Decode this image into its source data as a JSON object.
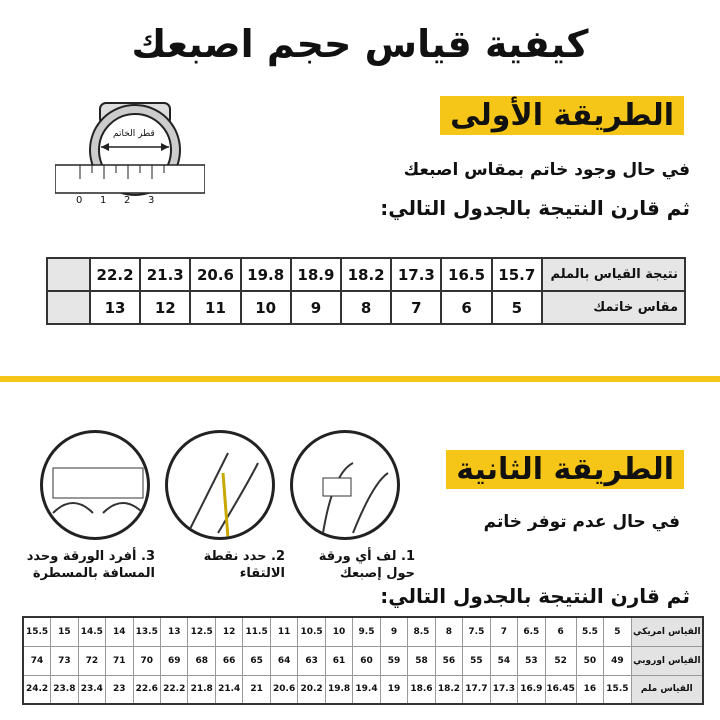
{
  "title": "كيفية قياس حجم اصبعك",
  "method1": {
    "badge": "الطريقة الأولى",
    "line1": "في حال وجود خاتم بمقاس اصبعك",
    "line2": "ثم قارن النتيجة بالجدول التالي:",
    "ring_label": "قطر الخاتم",
    "ruler_ticks": [
      "0",
      "1",
      "2",
      "3"
    ],
    "table": {
      "rows": [
        {
          "header": "نتيجة القياس بالملم",
          "values": [
            "15.7",
            "16.5",
            "17.3",
            "18.2",
            "18.9",
            "19.8",
            "20.6",
            "21.3",
            "22.2"
          ]
        },
        {
          "header": "مقاس خاتمك",
          "values": [
            "5",
            "6",
            "7",
            "8",
            "9",
            "10",
            "11",
            "12",
            "13"
          ]
        }
      ]
    }
  },
  "method2": {
    "badge": "الطريقة الثانية",
    "line1": "في حال عدم توفر خاتم",
    "line2": "ثم قارن النتيجة بالجدول التالي:",
    "steps": [
      "1. لف أي ورقة حول إصبعك",
      "2. حدد نقطة الالتقاء",
      "3. أفرد الورقة وحدد المسافة بالمسطرة"
    ],
    "table": {
      "rows": [
        {
          "header": "القياس امريكي",
          "values": [
            "5",
            "5.5",
            "6",
            "6.5",
            "7",
            "7.5",
            "8",
            "8.5",
            "9",
            "9.5",
            "10",
            "10.5",
            "11",
            "11.5",
            "12",
            "12.5",
            "13",
            "13.5",
            "14",
            "14.5",
            "15",
            "15.5"
          ]
        },
        {
          "header": "القياس اوروبي",
          "values": [
            "49",
            "50",
            "52",
            "53",
            "54",
            "55",
            "56",
            "58",
            "59",
            "60",
            "61",
            "63",
            "64",
            "65",
            "66",
            "68",
            "69",
            "70",
            "71",
            "72",
            "73",
            "74"
          ]
        },
        {
          "header": "القياس ملم",
          "values": [
            "15.5",
            "16",
            "16.45",
            "16.9",
            "17.3",
            "17.7",
            "18.2",
            "18.6",
            "19",
            "19.4",
            "19.8",
            "20.2",
            "20.6",
            "21",
            "21.4",
            "21.8",
            "22.2",
            "22.6",
            "23",
            "23.4",
            "23.8",
            "24.2"
          ]
        }
      ]
    }
  },
  "colors": {
    "accent": "#f5c518",
    "header_cell": "#e6e6e6"
  }
}
